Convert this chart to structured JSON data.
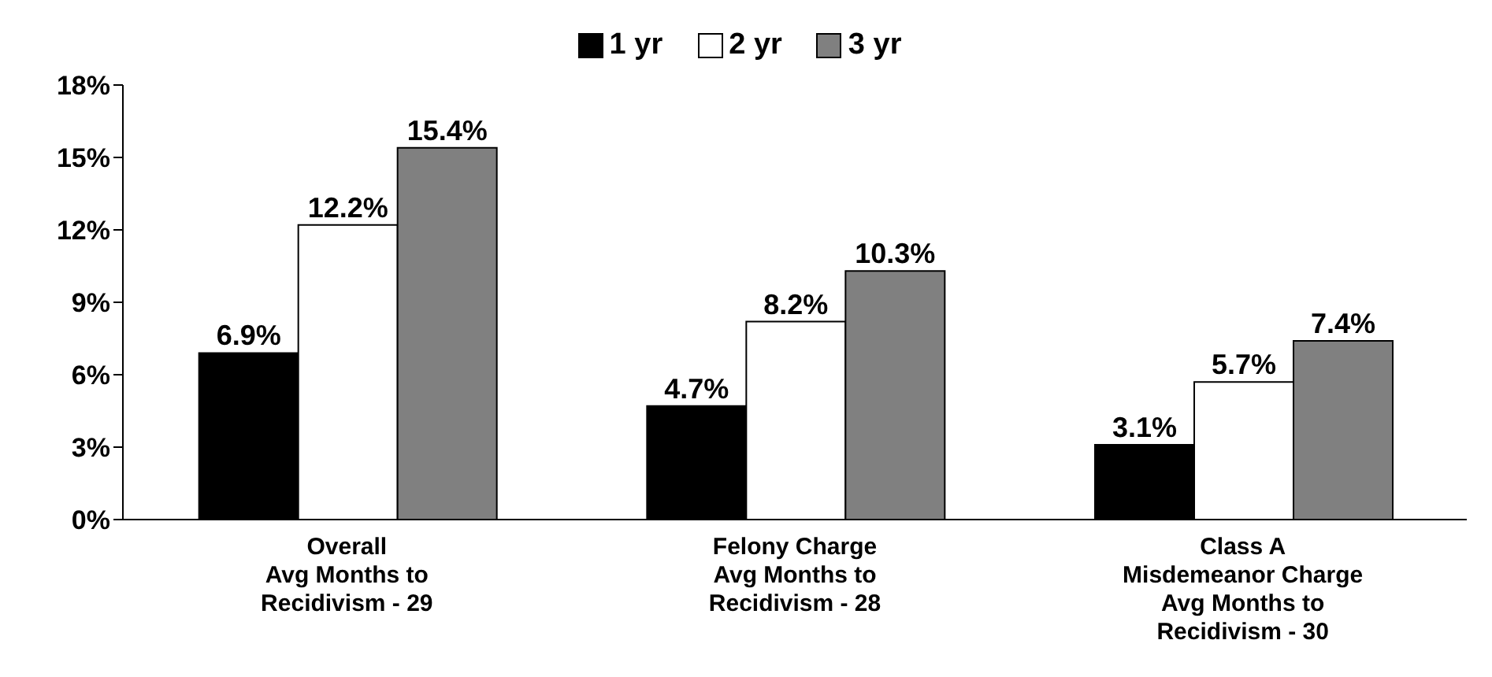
{
  "chart_data": {
    "type": "bar",
    "categories": [
      "Overall\nAvg Months to\nRecidivism - 29",
      "Felony Charge\nAvg Months to\nRecidivism - 28",
      "Class A\nMisdemeanor Charge\nAvg Months to\nRecidivism - 30"
    ],
    "series": [
      {
        "name": "1 yr",
        "color": "#000000",
        "values": [
          6.9,
          4.7,
          3.1
        ],
        "value_labels": [
          "6.9%",
          "4.7%",
          "3.1%"
        ]
      },
      {
        "name": "2 yr",
        "color": "#ffffff",
        "values": [
          12.2,
          8.2,
          5.7
        ],
        "value_labels": [
          "12.2%",
          "8.2%",
          "5.7%"
        ]
      },
      {
        "name": "3 yr",
        "color": "#808080",
        "values": [
          15.4,
          10.3,
          7.4
        ],
        "value_labels": [
          "15.4%",
          "10.3%",
          "7.4%"
        ]
      }
    ],
    "ylim": [
      0,
      18
    ],
    "yticks": [
      {
        "value": 0,
        "label": "0%"
      },
      {
        "value": 3,
        "label": "3%"
      },
      {
        "value": 6,
        "label": "6%"
      },
      {
        "value": 9,
        "label": "9%"
      },
      {
        "value": 12,
        "label": "12%"
      },
      {
        "value": 15,
        "label": "15%"
      },
      {
        "value": 18,
        "label": "18%"
      }
    ],
    "grid": false,
    "legend": "top"
  }
}
